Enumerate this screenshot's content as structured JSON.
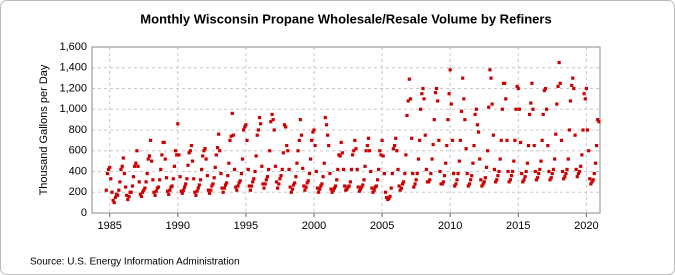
{
  "chart_data": {
    "type": "scatter",
    "title": "Monthly Wisconsin Propane Wholesale/Resale Volume by Refiners",
    "y_label": "Thousand Gallons per Day",
    "source": "Source: U.S. Energy Information Administration",
    "xlim": [
      1983.7,
      2021.0
    ],
    "xticks": [
      1985,
      1990,
      1995,
      2000,
      2005,
      2010,
      2015,
      2020
    ],
    "ylim": [
      0,
      1600
    ],
    "yticks": [
      0,
      200,
      400,
      600,
      800,
      {
        "value": 1000,
        "label": "1,000"
      },
      {
        "value": 1200,
        "label": "1,200"
      },
      {
        "value": 1400,
        "label": "1,400"
      },
      {
        "value": 1600,
        "label": "1,600"
      }
    ],
    "grid": true,
    "color": "#cc0000",
    "x": [
      1984.75,
      1984.83,
      1984.92,
      1985,
      1985.08,
      1985.17,
      1985.25,
      1985.33,
      1985.42,
      1985.5,
      1985.58,
      1985.67,
      1985.75,
      1985.83,
      1985.92,
      1986,
      1986.08,
      1986.17,
      1986.25,
      1986.33,
      1986.42,
      1986.5,
      1986.58,
      1986.67,
      1986.75,
      1986.83,
      1986.92,
      1987,
      1987.08,
      1987.17,
      1987.25,
      1987.33,
      1987.42,
      1987.5,
      1987.58,
      1987.67,
      1987.75,
      1987.83,
      1987.92,
      1988,
      1988.08,
      1988.17,
      1988.25,
      1988.33,
      1988.42,
      1988.5,
      1988.58,
      1988.67,
      1988.75,
      1988.83,
      1988.92,
      1989,
      1989.08,
      1989.17,
      1989.25,
      1989.33,
      1989.42,
      1989.5,
      1989.58,
      1989.67,
      1989.75,
      1989.83,
      1989.92,
      1990,
      1990.08,
      1990.17,
      1990.25,
      1990.33,
      1990.42,
      1990.5,
      1990.58,
      1990.67,
      1990.75,
      1990.83,
      1990.92,
      1991,
      1991.08,
      1991.17,
      1991.25,
      1991.33,
      1991.42,
      1991.5,
      1991.58,
      1991.67,
      1991.75,
      1991.83,
      1991.92,
      1992,
      1992.08,
      1992.17,
      1992.25,
      1992.33,
      1992.42,
      1992.5,
      1992.58,
      1992.67,
      1992.75,
      1992.83,
      1992.92,
      1993,
      1993.08,
      1993.17,
      1993.25,
      1993.33,
      1993.42,
      1993.5,
      1993.58,
      1993.67,
      1993.75,
      1993.83,
      1993.92,
      1994,
      1994.08,
      1994.17,
      1994.25,
      1994.33,
      1994.42,
      1994.5,
      1994.58,
      1994.67,
      1994.75,
      1994.83,
      1994.92,
      1995,
      1995.08,
      1995.17,
      1995.25,
      1995.33,
      1995.42,
      1995.5,
      1995.58,
      1995.67,
      1995.75,
      1995.83,
      1995.92,
      1996,
      1996.08,
      1996.17,
      1996.25,
      1996.33,
      1996.42,
      1996.5,
      1996.58,
      1996.67,
      1996.75,
      1996.83,
      1996.92,
      1997,
      1997.08,
      1997.17,
      1997.25,
      1997.33,
      1997.42,
      1997.5,
      1997.58,
      1997.67,
      1997.75,
      1997.83,
      1997.92,
      1998,
      1998.08,
      1998.17,
      1998.25,
      1998.33,
      1998.42,
      1998.5,
      1998.58,
      1998.67,
      1998.75,
      1998.83,
      1998.92,
      1999,
      1999.08,
      1999.17,
      1999.25,
      1999.33,
      1999.42,
      1999.5,
      1999.58,
      1999.67,
      1999.75,
      1999.83,
      1999.92,
      2000,
      2000.08,
      2000.17,
      2000.25,
      2000.33,
      2000.42,
      2000.5,
      2000.58,
      2000.67,
      2000.75,
      2000.83,
      2000.92,
      2001,
      2001.08,
      2001.17,
      2001.25,
      2001.33,
      2001.42,
      2001.5,
      2001.58,
      2001.67,
      2001.75,
      2001.83,
      2001.92,
      2002,
      2002.08,
      2002.17,
      2002.25,
      2002.33,
      2002.42,
      2002.5,
      2002.58,
      2002.67,
      2002.75,
      2002.83,
      2002.92,
      2003,
      2003.08,
      2003.17,
      2003.25,
      2003.33,
      2003.42,
      2003.5,
      2003.58,
      2003.67,
      2003.75,
      2003.83,
      2003.92,
      2004,
      2004.08,
      2004.17,
      2004.25,
      2004.33,
      2004.42,
      2004.5,
      2004.58,
      2004.67,
      2004.75,
      2004.83,
      2004.92,
      2005,
      2005.08,
      2005.17,
      2005.25,
      2005.33,
      2005.42,
      2005.5,
      2005.58,
      2005.67,
      2005.75,
      2005.83,
      2005.92,
      2006,
      2006.08,
      2006.17,
      2006.25,
      2006.33,
      2006.42,
      2006.5,
      2006.58,
      2006.67,
      2006.75,
      2006.83,
      2006.92,
      2007,
      2007.08,
      2007.17,
      2007.25,
      2007.33,
      2007.42,
      2007.5,
      2007.58,
      2007.67,
      2007.75,
      2007.83,
      2007.92,
      2008,
      2008.08,
      2008.17,
      2008.25,
      2008.33,
      2008.42,
      2008.5,
      2008.58,
      2008.67,
      2008.75,
      2008.83,
      2008.92,
      2009,
      2009.08,
      2009.17,
      2009.25,
      2009.33,
      2009.42,
      2009.5,
      2009.58,
      2009.67,
      2009.75,
      2009.83,
      2009.92,
      2010,
      2010.08,
      2010.17,
      2010.25,
      2010.33,
      2010.42,
      2010.5,
      2010.58,
      2010.67,
      2010.75,
      2010.83,
      2010.92,
      2011,
      2011.08,
      2011.17,
      2011.25,
      2011.33,
      2011.42,
      2011.5,
      2011.58,
      2011.67,
      2011.75,
      2011.83,
      2011.92,
      2012,
      2012.08,
      2012.17,
      2012.25,
      2012.33,
      2012.42,
      2012.5,
      2012.58,
      2012.67,
      2012.75,
      2012.83,
      2012.92,
      2013,
      2013.08,
      2013.17,
      2013.25,
      2013.33,
      2013.42,
      2013.5,
      2013.58,
      2013.67,
      2013.75,
      2013.83,
      2013.92,
      2014,
      2014.08,
      2014.17,
      2014.25,
      2014.33,
      2014.42,
      2014.5,
      2014.58,
      2014.67,
      2014.75,
      2014.83,
      2014.92,
      2015,
      2015.08,
      2015.17,
      2015.25,
      2015.33,
      2015.42,
      2015.5,
      2015.58,
      2015.67,
      2015.75,
      2015.83,
      2015.92,
      2016,
      2016.08,
      2016.17,
      2016.25,
      2016.33,
      2016.42,
      2016.5,
      2016.58,
      2016.67,
      2016.75,
      2016.83,
      2016.92,
      2017,
      2017.08,
      2017.17,
      2017.25,
      2017.33,
      2017.42,
      2017.5,
      2017.58,
      2017.67,
      2017.75,
      2017.83,
      2017.92,
      2018,
      2018.08,
      2018.17,
      2018.25,
      2018.33,
      2018.42,
      2018.5,
      2018.58,
      2018.67,
      2018.75,
      2018.83,
      2018.92,
      2019,
      2019.08,
      2019.17,
      2019.25,
      2019.33,
      2019.42,
      2019.5,
      2019.58,
      2019.67,
      2019.75,
      2019.83,
      2019.92,
      2020,
      2020.08,
      2020.17,
      2020.25,
      2020.33,
      2020.42,
      2020.5,
      2020.58,
      2020.67,
      2020.75,
      2020.83,
      2020.92
    ],
    "values": [
      220,
      380,
      420,
      440,
      330,
      200,
      120,
      100,
      150,
      180,
      170,
      220,
      300,
      420,
      450,
      530,
      380,
      250,
      170,
      130,
      160,
      200,
      200,
      260,
      350,
      450,
      480,
      600,
      450,
      300,
      180,
      160,
      200,
      220,
      240,
      300,
      380,
      520,
      550,
      700,
      500,
      320,
      200,
      170,
      210,
      240,
      250,
      320,
      420,
      560,
      680,
      680,
      520,
      340,
      210,
      180,
      220,
      250,
      260,
      330,
      450,
      600,
      560,
      860,
      560,
      350,
      210,
      190,
      220,
      250,
      280,
      330,
      460,
      580,
      600,
      650,
      500,
      330,
      200,
      170,
      210,
      240,
      270,
      320,
      420,
      550,
      600,
      620,
      520,
      360,
      220,
      190,
      220,
      260,
      280,
      340,
      440,
      560,
      630,
      760,
      600,
      380,
      240,
      200,
      240,
      270,
      290,
      360,
      480,
      700,
      740,
      960,
      750,
      420,
      250,
      220,
      260,
      290,
      310,
      380,
      520,
      800,
      830,
      850,
      700,
      420,
      260,
      220,
      260,
      300,
      330,
      400,
      550,
      750,
      800,
      920,
      860,
      450,
      280,
      240,
      280,
      320,
      350,
      420,
      600,
      880,
      950,
      900,
      800,
      450,
      300,
      240,
      280,
      330,
      360,
      420,
      580,
      850,
      830,
      650,
      600,
      420,
      250,
      200,
      230,
      270,
      290,
      350,
      480,
      600,
      700,
      900,
      750,
      430,
      260,
      220,
      250,
      290,
      310,
      380,
      520,
      700,
      780,
      800,
      650,
      400,
      240,
      200,
      230,
      260,
      280,
      350,
      480,
      920,
      850,
      750,
      650,
      380,
      230,
      200,
      220,
      240,
      260,
      320,
      420,
      560,
      550,
      680,
      580,
      420,
      260,
      220,
      230,
      250,
      260,
      300,
      420,
      560,
      600,
      700,
      620,
      420,
      250,
      210,
      230,
      250,
      270,
      320,
      450,
      600,
      650,
      720,
      600,
      400,
      240,
      200,
      220,
      250,
      260,
      320,
      420,
      600,
      560,
      700,
      550,
      380,
      200,
      150,
      130,
      140,
      160,
      240,
      380,
      620,
      650,
      720,
      600,
      420,
      260,
      220,
      240,
      280,
      300,
      380,
      560,
      940,
      1080,
      1290,
      1100,
      720,
      380,
      250,
      280,
      320,
      380,
      520,
      700,
      1000,
      1150,
      1200,
      1100,
      750,
      420,
      300,
      300,
      320,
      380,
      520,
      660,
      900,
      1160,
      1200,
      1080,
      700,
      400,
      280,
      280,
      300,
      360,
      480,
      650,
      900,
      1150,
      1380,
      1050,
      700,
      380,
      260,
      280,
      320,
      380,
      500,
      700,
      980,
      1300,
      1100,
      900,
      620,
      380,
      260,
      280,
      320,
      360,
      480,
      650,
      950,
      1000,
      850,
      780,
      520,
      320,
      260,
      280,
      300,
      340,
      440,
      600,
      1020,
      1380,
      1300,
      1050,
      750,
      420,
      300,
      320,
      360,
      400,
      520,
      700,
      1000,
      1250,
      1250,
      1100,
      700,
      400,
      300,
      320,
      360,
      400,
      500,
      700,
      1000,
      1220,
      1200,
      1000,
      680,
      380,
      300,
      320,
      350,
      400,
      480,
      650,
      950,
      1060,
      1250,
      1000,
      650,
      400,
      320,
      340,
      380,
      420,
      500,
      700,
      950,
      1180,
      1200,
      1000,
      650,
      400,
      320,
      340,
      380,
      420,
      520,
      760,
      1050,
      1220,
      1450,
      1250,
      700,
      400,
      330,
      350,
      380,
      420,
      520,
      800,
      1080,
      1230,
      1300,
      1200,
      750,
      420,
      350,
      380,
      400,
      450,
      560,
      800,
      1150,
      1100,
      1200,
      800,
      600,
      330,
      280,
      300,
      320,
      380,
      480,
      650,
      900,
      880
    ]
  }
}
